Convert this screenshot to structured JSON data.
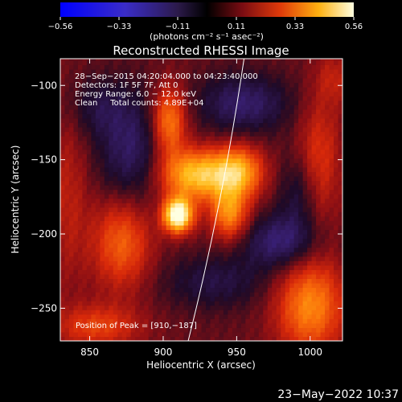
{
  "colorbar": {
    "min_label": "−0.56",
    "tick_labels": [
      "−0.56",
      "−0.33",
      "−0.11",
      "0.11",
      "0.33",
      "0.56"
    ],
    "range": [
      -0.56,
      0.56
    ],
    "unit_label": "(photons cm⁻² s⁻¹ asec⁻²)"
  },
  "chart_data": {
    "type": "heatmap",
    "title": "Reconstructed RHESSI Image",
    "xlabel": "Heliocentric X (arcsec)",
    "ylabel": "Heliocentric Y (arcsec)",
    "xlim": [
      830,
      1022
    ],
    "ylim": [
      -272,
      -82
    ],
    "xticks": [
      850,
      900,
      950,
      1000
    ],
    "yticks": [
      -100,
      -150,
      -200,
      -250
    ],
    "xtick_labels": [
      "850",
      "900",
      "950",
      "1000"
    ],
    "ytick_labels": [
      "−100",
      "−150",
      "−200",
      "−250"
    ],
    "info_lines": [
      "28−Sep−2015 04:20:04.000 to 04:23:40.000",
      "Detectors: 1F 5F 7F, Att 0",
      "Energy Range: 6.0 − 12.0 keV",
      "Clean     Total counts: 4.89E+04"
    ],
    "peak_text": "Position of Peak = [910,−187]",
    "peak": [
      910,
      -187
    ],
    "sources": [
      {
        "x": 910,
        "y": -187,
        "amp": 0.6,
        "sx": 7,
        "sy": 8
      },
      {
        "x": 922,
        "y": -160,
        "amp": 0.4,
        "sx": 17,
        "sy": 12
      },
      {
        "x": 951,
        "y": -158,
        "amp": 0.34,
        "sx": 12,
        "sy": 12
      },
      {
        "x": 945,
        "y": -186,
        "amp": 0.3,
        "sx": 9,
        "sy": 12
      },
      {
        "x": 904,
        "y": -124,
        "amp": 0.3,
        "sx": 8,
        "sy": 16
      },
      {
        "x": 872,
        "y": -205,
        "amp": 0.24,
        "sx": 14,
        "sy": 22
      },
      {
        "x": 1000,
        "y": -248,
        "amp": 0.3,
        "sx": 16,
        "sy": 22
      },
      {
        "x": 1006,
        "y": -150,
        "amp": 0.16,
        "sx": 10,
        "sy": 30
      },
      {
        "x": 855,
        "y": -262,
        "amp": 0.18,
        "sx": 20,
        "sy": 10
      },
      {
        "x": 835,
        "y": -175,
        "amp": 0.1,
        "sx": 10,
        "sy": 40
      },
      {
        "x": 1016,
        "y": -95,
        "amp": 0.1,
        "sx": 8,
        "sy": 12
      }
    ],
    "negatives": [
      {
        "x": 878,
        "y": -145,
        "amp": 0.17,
        "sx": 16,
        "sy": 28
      },
      {
        "x": 955,
        "y": -112,
        "amp": 0.18,
        "sx": 22,
        "sy": 14
      },
      {
        "x": 980,
        "y": -205,
        "amp": 0.2,
        "sx": 18,
        "sy": 13
      },
      {
        "x": 935,
        "y": -232,
        "amp": 0.12,
        "sx": 26,
        "sy": 13
      },
      {
        "x": 993,
        "y": -172,
        "amp": 0.12,
        "sx": 10,
        "sy": 18
      },
      {
        "x": 855,
        "y": -115,
        "amp": 0.1,
        "sx": 14,
        "sy": 14
      }
    ],
    "limb_line": [
      [
        917,
        -272
      ],
      [
        940,
        -182
      ],
      [
        955,
        -82
      ]
    ]
  },
  "timestamp": "23−May−2022 10:37",
  "colors": {
    "background": "#000000",
    "foreground": "#ffffff"
  }
}
